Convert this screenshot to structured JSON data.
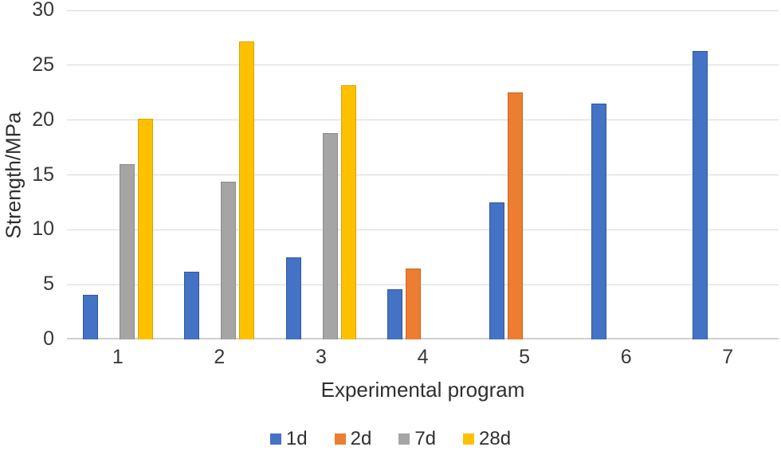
{
  "chart_data": {
    "type": "bar",
    "xlabel": "Experimental program",
    "ylabel": "Strength/MPa",
    "ylim": [
      0,
      30
    ],
    "yticks": [
      0,
      5,
      10,
      15,
      20,
      25,
      30
    ],
    "grid": true,
    "legend_position": "bottom",
    "categories": [
      "1",
      "2",
      "3",
      "4",
      "5",
      "6",
      "7"
    ],
    "series": [
      {
        "name": "1d",
        "color": "#4472C4",
        "border": "#2E5AA0",
        "values": [
          4.1,
          6.2,
          7.5,
          4.6,
          12.5,
          21.5,
          26.3
        ]
      },
      {
        "name": "2d",
        "color": "#ED7D31",
        "border": "#C96722",
        "values": [
          null,
          null,
          null,
          6.5,
          22.5,
          null,
          null
        ]
      },
      {
        "name": "7d",
        "color": "#A5A5A5",
        "border": "#8C8C8C",
        "values": [
          16,
          14.4,
          18.8,
          null,
          null,
          null,
          null
        ]
      },
      {
        "name": "28d",
        "color": "#FFC000",
        "border": "#D9A400",
        "values": [
          20.1,
          27.2,
          23.2,
          null,
          null,
          null,
          null
        ]
      }
    ],
    "colors": {
      "gridline": "#D9D9D9",
      "axis_line": "#CFCFCF",
      "text": "#2F2F2F"
    }
  }
}
